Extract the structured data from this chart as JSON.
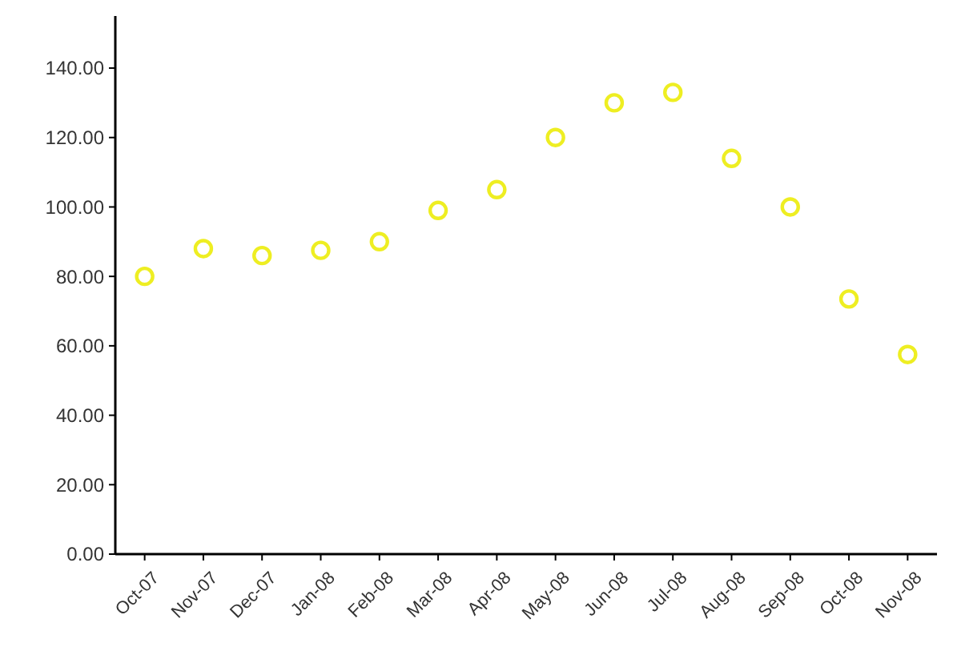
{
  "chart_data": {
    "type": "scatter",
    "categories": [
      "Oct-07",
      "Nov-07",
      "Dec-07",
      "Jan-08",
      "Feb-08",
      "Mar-08",
      "Apr-08",
      "May-08",
      "Jun-08",
      "Jul-08",
      "Aug-08",
      "Sep-08",
      "Oct-08",
      "Nov-08"
    ],
    "series": [
      {
        "color": "#eeee22",
        "values": [
          80,
          88,
          86,
          87.5,
          90,
          99,
          105,
          120,
          130,
          133,
          114,
          100,
          73.5,
          57.5
        ]
      }
    ],
    "ylim": [
      0,
      155
    ],
    "yticks": [
      {
        "value": 0,
        "label": "0.00"
      },
      {
        "value": 20,
        "label": "20.00"
      },
      {
        "value": 40,
        "label": "40.00"
      },
      {
        "value": 60,
        "label": "60.00"
      },
      {
        "value": 80,
        "label": "80.00"
      },
      {
        "value": 100,
        "label": "100.00"
      },
      {
        "value": 120,
        "label": "120.00"
      },
      {
        "value": 140,
        "label": "140.00"
      }
    ],
    "marker": "circle"
  }
}
